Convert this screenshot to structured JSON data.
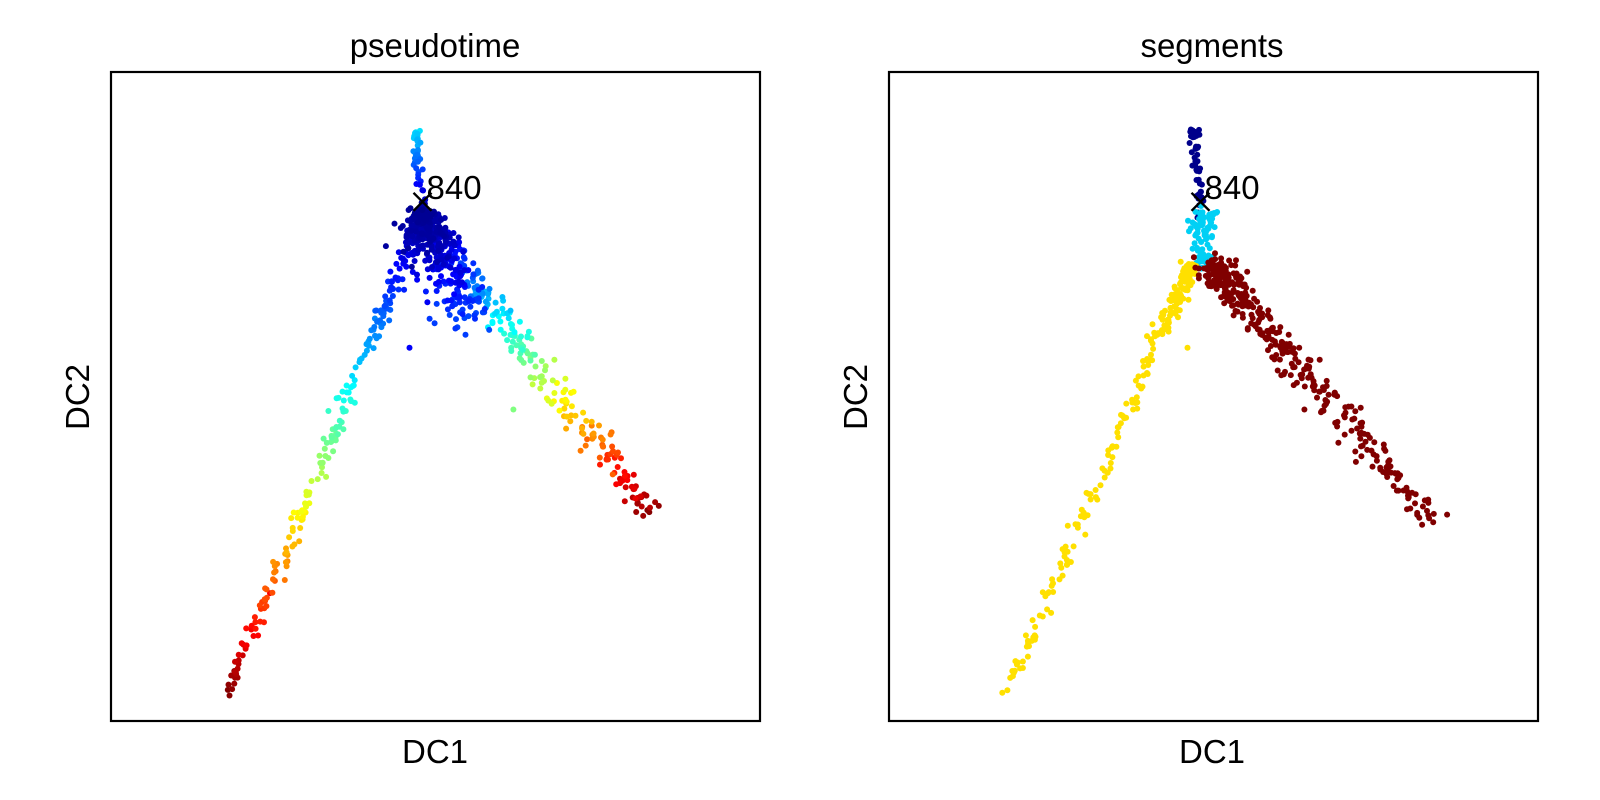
{
  "chart_data": [
    {
      "type": "scatter",
      "title": "pseudotime",
      "xlabel": "DC1",
      "ylabel": "DC2",
      "xlim": [
        0,
        1
      ],
      "ylim": [
        0,
        1
      ],
      "grid": false,
      "root": {
        "x": 0.48,
        "y": 0.8,
        "label": "840"
      },
      "color_by": "pseudotime",
      "colormap": "jet",
      "branches": [
        {
          "name": "stem",
          "from": [
            0.47,
            0.91
          ],
          "to": [
            0.48,
            0.78
          ],
          "n": 45,
          "spread": 0.004,
          "t0": 0.35,
          "t1": 0.0
        },
        {
          "name": "left",
          "from": [
            0.48,
            0.78
          ],
          "to": [
            0.18,
            0.04
          ],
          "n": 260,
          "spread": 0.006,
          "t0": 0.02,
          "t1": 1.0
        },
        {
          "name": "right",
          "from": [
            0.48,
            0.78
          ],
          "to": [
            0.83,
            0.32
          ],
          "n": 320,
          "spread": 0.011,
          "t0": 0.02,
          "t1": 1.0
        },
        {
          "name": "dense-core",
          "from": [
            0.48,
            0.76
          ],
          "to": [
            0.55,
            0.62
          ],
          "n": 260,
          "spread": 0.02,
          "t0": 0.03,
          "t1": 0.2
        }
      ],
      "extra_points": [
        {
          "x": 0.19,
          "y": 0.077,
          "t": 0.99
        },
        {
          "x": 0.245,
          "y": 0.197,
          "t": 0.88
        },
        {
          "x": 0.272,
          "y": 0.246,
          "t": 0.74
        },
        {
          "x": 0.29,
          "y": 0.277,
          "t": 0.7
        },
        {
          "x": 0.773,
          "y": 0.38,
          "t": 0.78
        },
        {
          "x": 0.82,
          "y": 0.316,
          "t": 0.97
        },
        {
          "x": 0.62,
          "y": 0.48,
          "t": 0.5
        },
        {
          "x": 0.46,
          "y": 0.575,
          "t": 0.12
        }
      ]
    },
    {
      "type": "scatter",
      "title": "segments",
      "xlabel": "DC1",
      "ylabel": "DC2",
      "xlim": [
        0,
        1
      ],
      "ylim": [
        0,
        1
      ],
      "grid": false,
      "root": {
        "x": 0.48,
        "y": 0.8,
        "label": "840"
      },
      "color_by": "segment",
      "segment_colors": {
        "stem": "#00008b",
        "core": "#00d0f5",
        "left": "#ffe000",
        "right": "#800000"
      },
      "branches": [
        {
          "name": "stem",
          "segment": "stem",
          "from": [
            0.47,
            0.91
          ],
          "to": [
            0.48,
            0.78
          ],
          "n": 50,
          "spread": 0.004
        },
        {
          "name": "core",
          "segment": "core",
          "from": [
            0.485,
            0.78
          ],
          "to": [
            0.485,
            0.7
          ],
          "n": 90,
          "spread": 0.01
        },
        {
          "name": "left",
          "segment": "left",
          "from": [
            0.465,
            0.7
          ],
          "to": [
            0.18,
            0.04
          ],
          "n": 240,
          "spread": 0.006
        },
        {
          "name": "right",
          "segment": "right",
          "from": [
            0.5,
            0.7
          ],
          "to": [
            0.83,
            0.32
          ],
          "n": 380,
          "spread": 0.013
        }
      ],
      "extra_points": [
        {
          "x": 0.19,
          "y": 0.077,
          "segment": "left"
        },
        {
          "x": 0.245,
          "y": 0.197,
          "segment": "left"
        },
        {
          "x": 0.46,
          "y": 0.575,
          "segment": "left"
        },
        {
          "x": 0.8,
          "y": 0.343,
          "segment": "right"
        },
        {
          "x": 0.86,
          "y": 0.318,
          "segment": "right"
        },
        {
          "x": 0.64,
          "y": 0.48,
          "segment": "right"
        }
      ]
    }
  ]
}
